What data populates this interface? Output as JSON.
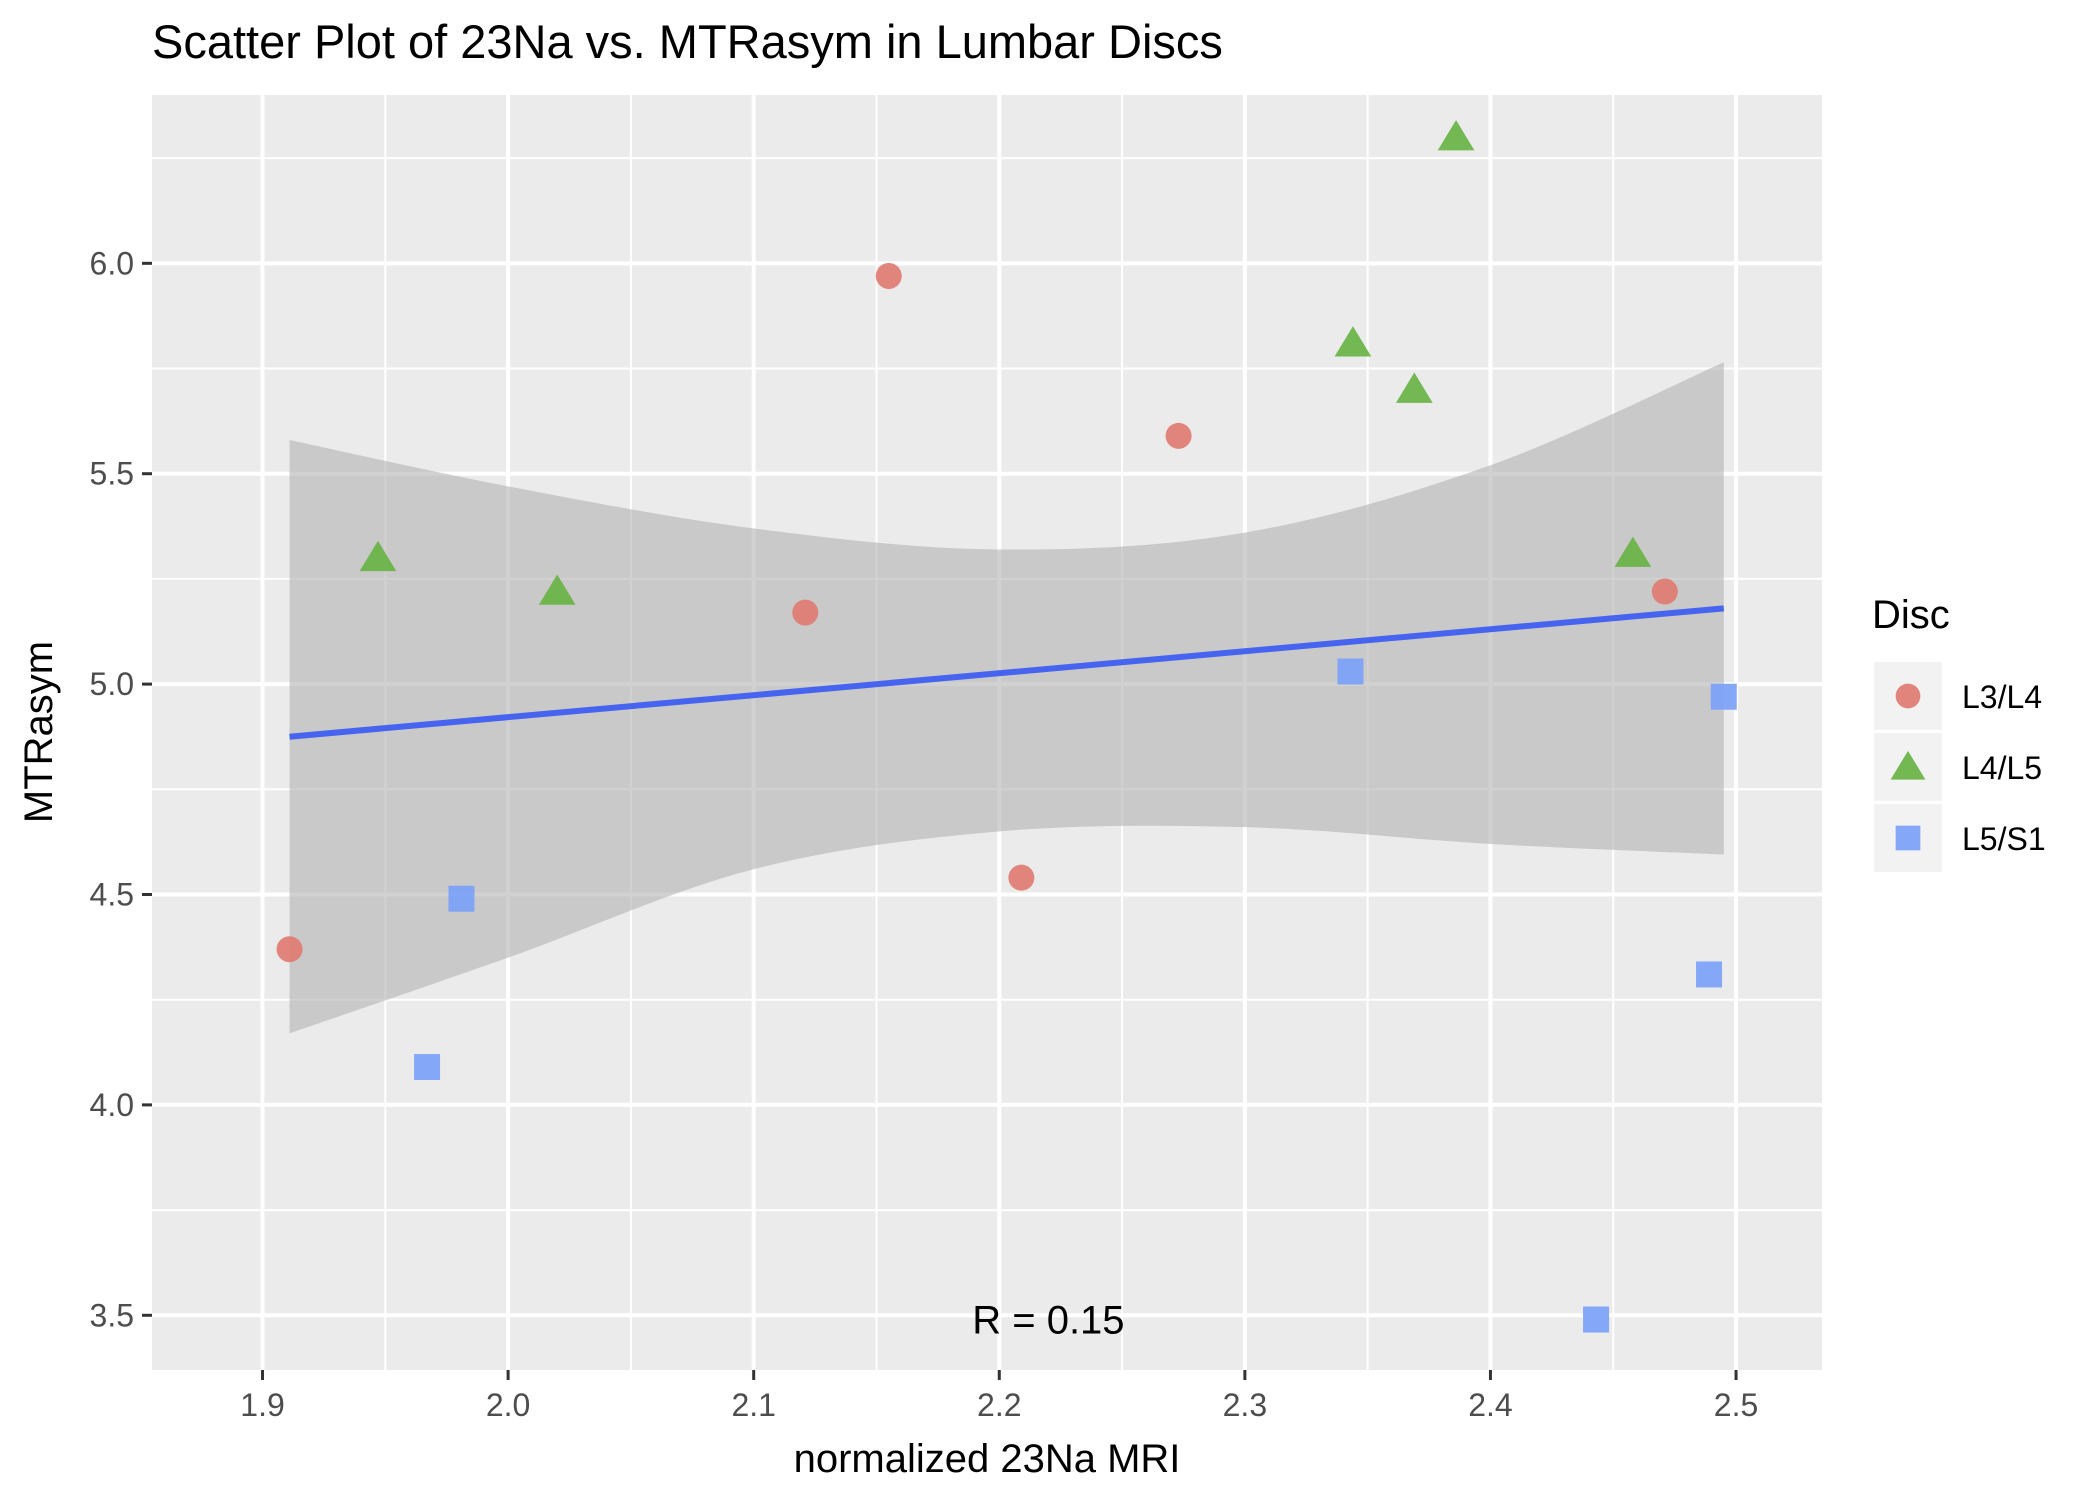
{
  "chart_data": {
    "type": "scatter",
    "title": "Scatter Plot of 23Na vs. MTRasym in Lumbar Discs",
    "xlabel": "normalized 23Na MRI",
    "ylabel": "MTRasym",
    "xlim": [
      1.855,
      2.535
    ],
    "ylim": [
      3.37,
      6.4
    ],
    "x_ticks": [
      1.9,
      2.0,
      2.1,
      2.2,
      2.3,
      2.4,
      2.5
    ],
    "x_tick_labels": [
      "1.9",
      "2.0",
      "2.1",
      "2.2",
      "2.3",
      "2.4",
      "2.5"
    ],
    "y_ticks": [
      3.5,
      4.0,
      4.5,
      5.0,
      5.5,
      6.0
    ],
    "y_tick_labels": [
      "3.5",
      "4.0",
      "4.5",
      "5.0",
      "5.5",
      "6.0"
    ],
    "grid": true,
    "legend": {
      "title": "Disc",
      "position": "right",
      "entries": [
        "L3/L4",
        "L4/L5",
        "L5/S1"
      ]
    },
    "series": [
      {
        "name": "L3/L4",
        "shape": "circle",
        "color": "#E07B72",
        "points": [
          {
            "x": 1.911,
            "y": 4.37
          },
          {
            "x": 2.121,
            "y": 5.17
          },
          {
            "x": 2.155,
            "y": 5.97
          },
          {
            "x": 2.209,
            "y": 4.54
          },
          {
            "x": 2.273,
            "y": 5.59
          },
          {
            "x": 2.471,
            "y": 5.22
          }
        ]
      },
      {
        "name": "L4/L5",
        "shape": "triangle",
        "color": "#68B345",
        "points": [
          {
            "x": 1.947,
            "y": 5.3
          },
          {
            "x": 2.02,
            "y": 5.22
          },
          {
            "x": 2.344,
            "y": 5.81
          },
          {
            "x": 2.369,
            "y": 5.7
          },
          {
            "x": 2.386,
            "y": 6.3
          },
          {
            "x": 2.458,
            "y": 5.31
          }
        ]
      },
      {
        "name": "L5/S1",
        "shape": "square",
        "color": "#7CA1F8",
        "points": [
          {
            "x": 1.967,
            "y": 4.09
          },
          {
            "x": 1.981,
            "y": 4.49
          },
          {
            "x": 2.343,
            "y": 5.03
          },
          {
            "x": 2.443,
            "y": 3.49
          },
          {
            "x": 2.489,
            "y": 4.31
          },
          {
            "x": 2.495,
            "y": 4.97
          }
        ]
      }
    ],
    "fit_line": {
      "color": "#4664F0",
      "x": [
        1.911,
        2.495
      ],
      "y": [
        4.875,
        5.18
      ]
    },
    "confidence_band": {
      "color": "#B3B3B3",
      "x": [
        1.911,
        2.0,
        2.1,
        2.2,
        2.3,
        2.4,
        2.495
      ],
      "upper": [
        5.58,
        5.47,
        5.37,
        5.32,
        5.36,
        5.52,
        5.765
      ],
      "lower": [
        4.17,
        4.35,
        4.56,
        4.65,
        4.66,
        4.62,
        4.595
      ]
    },
    "annotations": [
      {
        "text": "R = 0.15",
        "x": 2.22,
        "y": 3.49
      }
    ]
  }
}
